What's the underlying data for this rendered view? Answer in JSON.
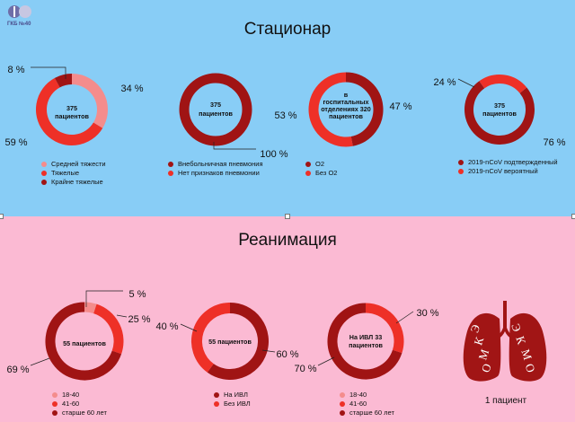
{
  "logo": {
    "text": "ГКБ №40"
  },
  "sections": [
    {
      "title": "Стационар"
    },
    {
      "title": "Реанимация"
    }
  ],
  "colors": {
    "light_pink": "#f48c8c",
    "red": "#ee3027",
    "dark_red": "#a01414",
    "lungs": "#a11515"
  },
  "chart_data": [
    {
      "type": "pie",
      "style": "donut",
      "center_label": [
        "375",
        "пациентов"
      ],
      "slices": [
        {
          "name": "Средней тяжести",
          "value": 34,
          "label": "34 %",
          "color": "#f48c8c"
        },
        {
          "name": "Тяжелые",
          "value": 59,
          "label": "59 %",
          "color": "#ee3027"
        },
        {
          "name": "Крайне тяжелые",
          "value": 8,
          "label": "8 %",
          "color": "#a01414"
        }
      ]
    },
    {
      "type": "pie",
      "style": "donut",
      "center_label": [
        "375",
        "пациентов"
      ],
      "slices": [
        {
          "name": "Внебольничная пневмония",
          "value": 100,
          "label": "100 %",
          "color": "#a01414"
        },
        {
          "name": "Нет признаков пневмонии",
          "value": 0,
          "label": "",
          "color": "#ee3027"
        }
      ]
    },
    {
      "type": "pie",
      "style": "donut",
      "center_label": [
        "в",
        "госпитальных",
        "отделениях 320",
        "пациентов"
      ],
      "slices": [
        {
          "name": "O2",
          "value": 47,
          "label": "47 %",
          "color": "#a01414"
        },
        {
          "name": "Без O2",
          "value": 53,
          "label": "53 %",
          "color": "#ee3027"
        }
      ]
    },
    {
      "type": "pie",
      "style": "donut",
      "center_label": [
        "375",
        "пациентов"
      ],
      "slices": [
        {
          "name": "2019-nCoV подтвержденный",
          "value": 76,
          "label": "76 %",
          "color": "#a01414"
        },
        {
          "name": "2019-nCoV вероятный",
          "value": 24,
          "label": "24 %",
          "color": "#ee3027"
        }
      ]
    },
    {
      "type": "pie",
      "style": "donut",
      "center_label": [
        "55 пациентов"
      ],
      "slices": [
        {
          "name": "18-40",
          "value": 5,
          "label": "5 %",
          "color": "#f48c8c"
        },
        {
          "name": "41-60",
          "value": 25,
          "label": "25 %",
          "color": "#ee3027"
        },
        {
          "name": "старше 60 лет",
          "value": 69,
          "label": "69 %",
          "color": "#a01414"
        }
      ]
    },
    {
      "type": "pie",
      "style": "donut",
      "center_label": [
        "55 пациентов"
      ],
      "slices": [
        {
          "name": "На ИВЛ",
          "value": 60,
          "label": "60 %",
          "color": "#a01414"
        },
        {
          "name": "Без ИВЛ",
          "value": 40,
          "label": "40 %",
          "color": "#ee3027"
        }
      ]
    },
    {
      "type": "pie",
      "style": "donut",
      "center_label": [
        "На ИВЛ 33",
        "пациентов"
      ],
      "slices": [
        {
          "name": "18-40",
          "value": 0,
          "label": "",
          "color": "#f48c8c"
        },
        {
          "name": "41-60",
          "value": 30,
          "label": "30 %",
          "color": "#ee3027"
        },
        {
          "name": "старше 60 лет",
          "value": 70,
          "label": "70 %",
          "color": "#a01414"
        }
      ]
    }
  ],
  "ecmo": {
    "letters": [
      "Э",
      "К",
      "М",
      "О"
    ],
    "caption": "1 пациент"
  }
}
